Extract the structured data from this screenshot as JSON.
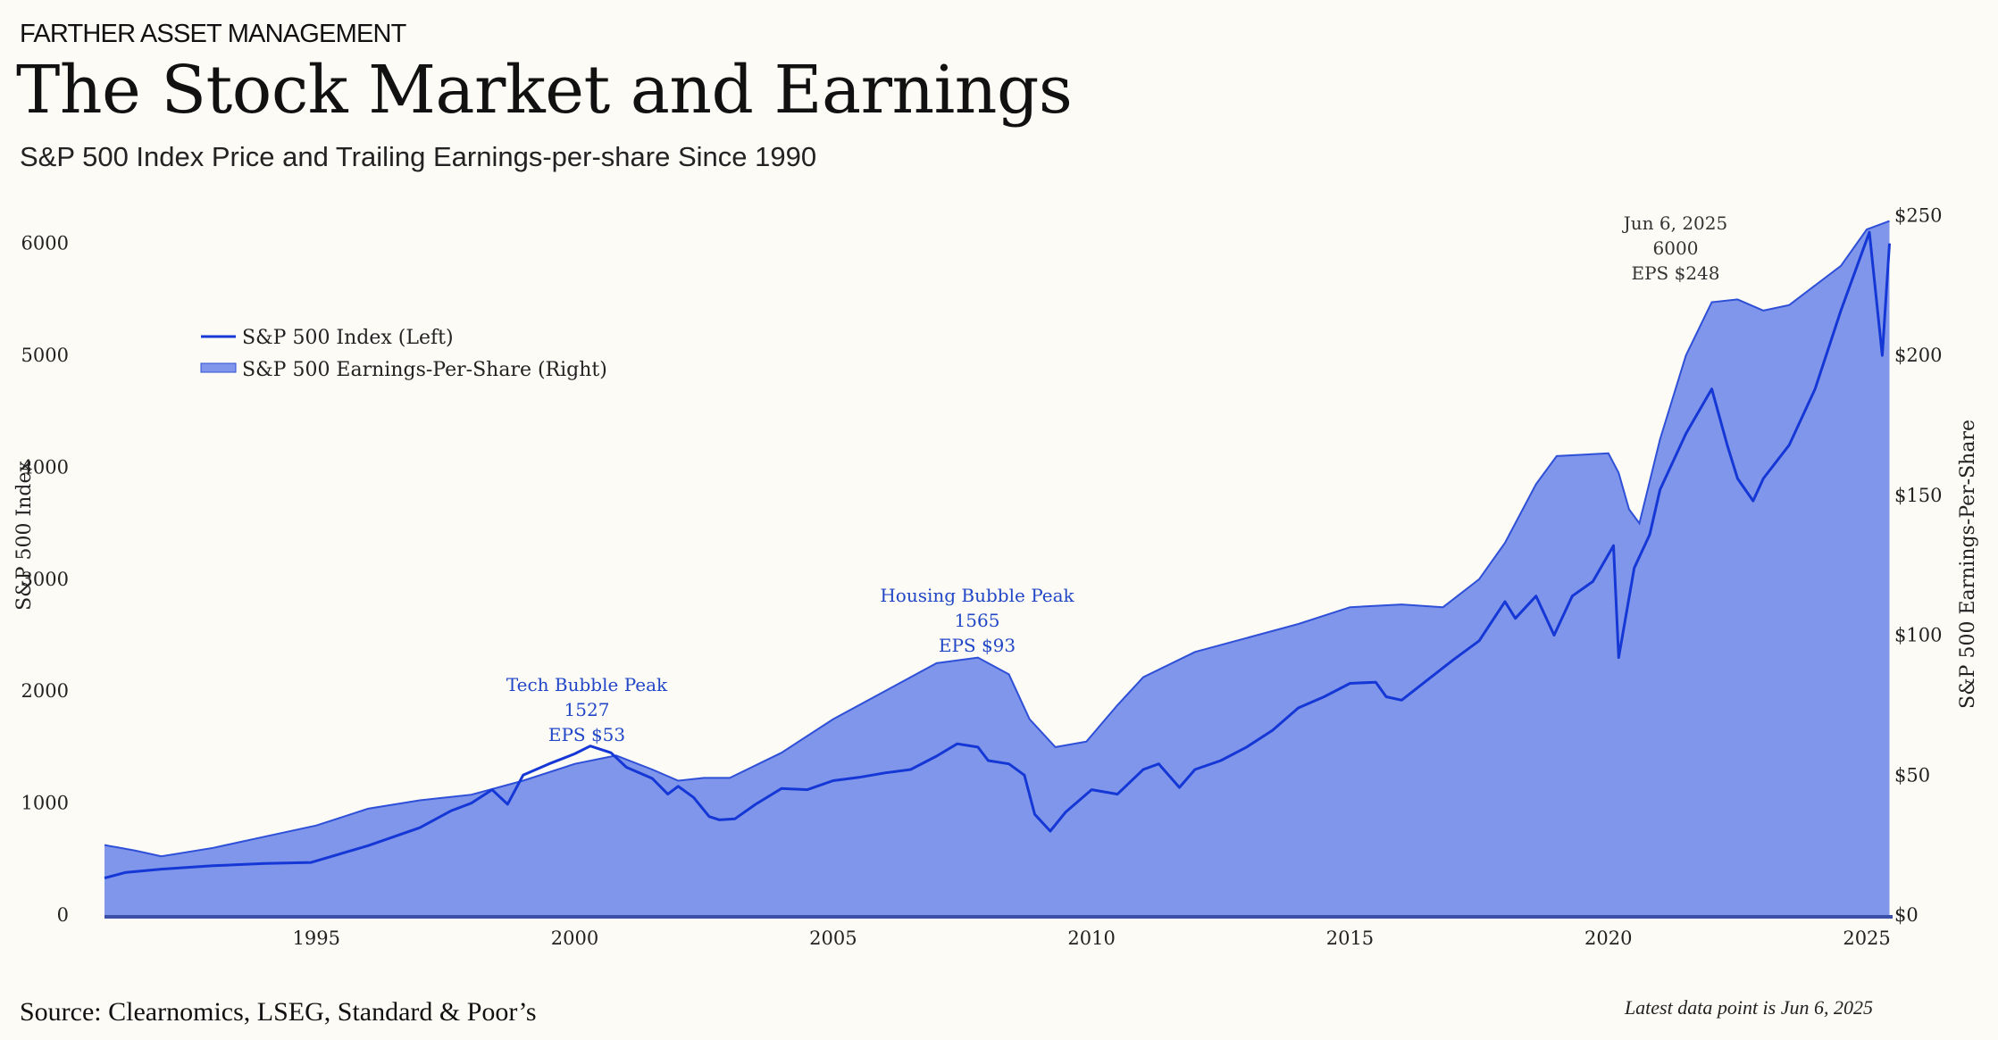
{
  "header": {
    "brand": "FARTHER ASSET MANAGEMENT",
    "title": "The Stock Market and Earnings",
    "subtitle": "S&P 500 Index Price and Trailing Earnings-per-share Since 1990"
  },
  "footer": {
    "source": "Source: Clearnomics, LSEG, Standard & Poor’s",
    "latest": "Latest data point is Jun 6, 2025"
  },
  "colors": {
    "index_line": "#1537d6",
    "eps_fill": "#7f96ea",
    "eps_edge": "#2e4fd8",
    "baseline": "#3a4fa8"
  },
  "chart_data": {
    "type": "line",
    "title": "The Stock Market and Earnings",
    "xlabel": "",
    "ylabel": "S&P 500 Index",
    "ylabel_right": "S&P 500 Earnings-Per-Share",
    "xlim": [
      1990.9,
      2025.5
    ],
    "ylim": [
      0,
      6500
    ],
    "ylim_right": [
      0,
      260
    ],
    "x_ticks": [
      1995,
      2000,
      2005,
      2010,
      2015,
      2020,
      2025
    ],
    "x_tick_labels": [
      "1995",
      "2000",
      "2005",
      "2010",
      "2015",
      "2020",
      "2025"
    ],
    "y_ticks": [
      0,
      1000,
      2000,
      3000,
      4000,
      5000,
      6000
    ],
    "y_tick_labels": [
      "0",
      "1000",
      "2000",
      "3000",
      "4000",
      "5000",
      "6000"
    ],
    "y_right_ticks": [
      0,
      50,
      100,
      150,
      200,
      250
    ],
    "y_right_tick_labels": [
      "$0",
      "$50",
      "$100",
      "$150",
      "$200",
      "$250"
    ],
    "legend_position": "top-left",
    "grid": false,
    "series": [
      {
        "name": "S&P 500 Index (Left)",
        "axis": "left",
        "style": "line",
        "x": [
          1990.9,
          1991.3,
          1992,
          1993,
          1994,
          1994.9,
          1996,
          1997,
          1997.6,
          1998,
          1998.4,
          1998.7,
          1999,
          1999.5,
          2000,
          2000.3,
          2000.7,
          2001,
          2001.5,
          2001.8,
          2002,
          2002.3,
          2002.6,
          2002.8,
          2003.1,
          2003.5,
          2004,
          2004.5,
          2005,
          2005.5,
          2006,
          2006.5,
          2007,
          2007.4,
          2007.8,
          2008,
          2008.4,
          2008.7,
          2008.9,
          2009.2,
          2009.5,
          2010,
          2010.5,
          2011,
          2011.3,
          2011.7,
          2012,
          2012.5,
          2013,
          2013.5,
          2014,
          2014.5,
          2015,
          2015.5,
          2015.7,
          2016,
          2016.5,
          2017,
          2017.5,
          2018,
          2018.2,
          2018.6,
          2018.95,
          2019.3,
          2019.7,
          2020.1,
          2020.2,
          2020.5,
          2020.8,
          2021,
          2021.5,
          2022,
          2022.3,
          2022.5,
          2022.8,
          2023,
          2023.5,
          2024,
          2024.5,
          2025.05,
          2025.3,
          2025.44
        ],
        "values": [
          330,
          380,
          410,
          440,
          460,
          470,
          620,
          780,
          930,
          1000,
          1120,
          990,
          1250,
          1350,
          1440,
          1510,
          1450,
          1320,
          1220,
          1080,
          1150,
          1050,
          880,
          850,
          860,
          990,
          1130,
          1120,
          1200,
          1230,
          1270,
          1300,
          1420,
          1530,
          1500,
          1380,
          1350,
          1250,
          900,
          750,
          920,
          1120,
          1080,
          1300,
          1350,
          1140,
          1300,
          1380,
          1500,
          1650,
          1850,
          1950,
          2070,
          2080,
          1950,
          1920,
          2100,
          2280,
          2450,
          2800,
          2650,
          2850,
          2500,
          2850,
          2980,
          3300,
          2300,
          3100,
          3400,
          3800,
          4300,
          4700,
          4200,
          3900,
          3700,
          3900,
          4200,
          4700,
          5400,
          6100,
          5000,
          6000
        ]
      },
      {
        "name": "S&P 500 Earnings-Per-Share (Right)",
        "axis": "right",
        "style": "area",
        "x": [
          1990.9,
          1991.5,
          1992,
          1993,
          1994,
          1995,
          1996,
          1997,
          1998,
          1999,
          2000,
          2000.8,
          2001.5,
          2002,
          2002.5,
          2003,
          2004,
          2005,
          2006,
          2007,
          2007.8,
          2008.4,
          2008.8,
          2009.3,
          2009.9,
          2010.5,
          2011,
          2012,
          2013,
          2014,
          2015,
          2016,
          2016.8,
          2017.5,
          2018,
          2018.6,
          2019,
          2020,
          2020.2,
          2020.4,
          2020.6,
          2021,
          2021.5,
          2022,
          2022.5,
          2023,
          2023.5,
          2024,
          2024.5,
          2025,
          2025.44
        ],
        "values": [
          25,
          23,
          21,
          24,
          28,
          32,
          38,
          41,
          43,
          48,
          54,
          57,
          52,
          48,
          49,
          49,
          58,
          70,
          80,
          90,
          92,
          86,
          70,
          60,
          62,
          75,
          85,
          94,
          99,
          104,
          110,
          111,
          110,
          120,
          133,
          154,
          164,
          165,
          158,
          145,
          140,
          170,
          200,
          219,
          220,
          216,
          218,
          225,
          232,
          245,
          248
        ]
      }
    ],
    "annotations": [
      {
        "lines": [
          "Tech Bubble Peak",
          "1527",
          "EPS $53"
        ],
        "color": "blue"
      },
      {
        "lines": [
          "Housing Bubble Peak",
          "1565",
          "EPS $93"
        ],
        "color": "blue"
      },
      {
        "lines": [
          "Jun 6, 2025",
          "6000",
          "EPS $248"
        ],
        "color": "dark"
      }
    ]
  }
}
